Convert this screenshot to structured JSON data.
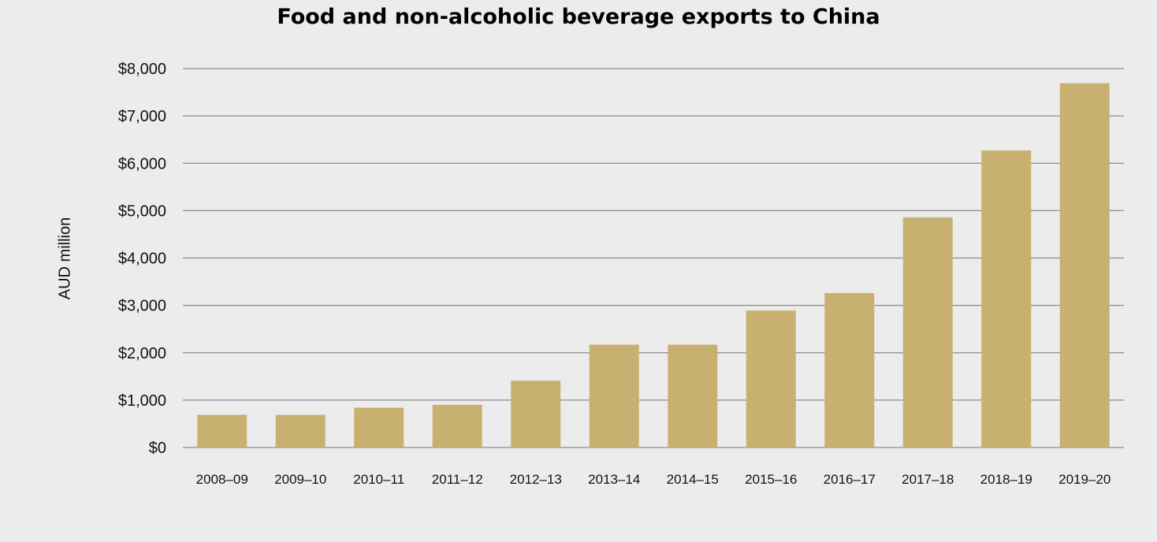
{
  "chart_data": {
    "type": "bar",
    "title": "Food and non-alcoholic beverage exports to China",
    "xlabel": "",
    "ylabel": "AUD million",
    "categories": [
      "2008–09",
      "2009–10",
      "2010–11",
      "2011–12",
      "2012–13",
      "2013–14",
      "2014–15",
      "2015–16",
      "2016–17",
      "2017–18",
      "2018–19",
      "2019–20"
    ],
    "values": [
      690,
      690,
      840,
      900,
      1410,
      2170,
      2170,
      2890,
      3260,
      4860,
      6270,
      7690
    ],
    "ylim": [
      0,
      8000
    ],
    "yticks": [
      0,
      1000,
      2000,
      3000,
      4000,
      5000,
      6000,
      7000,
      8000
    ],
    "ytick_labels": [
      "$0",
      "$1,000",
      "$2,000",
      "$3,000",
      "$4,000",
      "$5,000",
      "$6,000",
      "$7,000",
      "$8,000"
    ],
    "grid": true,
    "legend": "none",
    "colors": {
      "bar": "#c8b070",
      "grid": "#8c8c8c",
      "background": "#ececec",
      "text": "#111111"
    }
  }
}
